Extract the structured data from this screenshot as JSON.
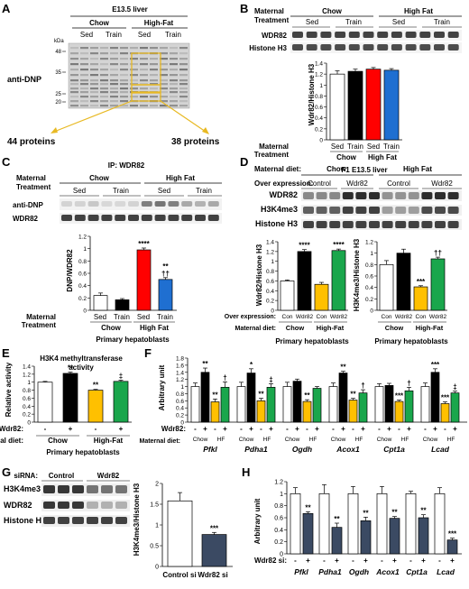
{
  "panels": {
    "A": {
      "letter": "A",
      "title": "E13.5 liver",
      "group_labels": [
        "Chow",
        "High-Fat"
      ],
      "sub_labels": [
        "Sed",
        "Train",
        "Sed",
        "Train"
      ],
      "kda_label": "kDa",
      "kda_marks": [
        "48",
        "35",
        "25",
        "20"
      ],
      "blot_label": "anti-DNP",
      "callouts": [
        "44 proteins",
        "38 proteins"
      ]
    },
    "B": {
      "letter": "B",
      "treatment_label": [
        "Maternal",
        "Treatment"
      ],
      "group_labels": [
        "Chow",
        "High Fat"
      ],
      "sub_labels": [
        "Sed",
        "Train",
        "Sed",
        "Train"
      ],
      "blots": [
        "WDR82",
        "Histone H3"
      ],
      "ylabel": "Wdr82/Histone H3",
      "yticks": [
        "0",
        "0.2",
        "0.4",
        "0.6",
        "0.8",
        "1",
        "1.2",
        "1.4"
      ],
      "xgroups": [
        "Chow",
        "High Fat"
      ],
      "xsub": [
        "Sed",
        "Train",
        "Sed",
        "Train"
      ],
      "footer": "F1 E13.5 liver"
    },
    "C": {
      "letter": "C",
      "ip_label": "IP: WDR82",
      "treatment_label": [
        "Maternal",
        "Treatment"
      ],
      "group_labels": [
        "Chow",
        "High Fat"
      ],
      "sub_labels": [
        "Sed",
        "Train",
        "Sed",
        "Train"
      ],
      "blots": [
        "anti-DNP",
        "WDR82"
      ],
      "ylabel": "DNP/WDR82",
      "yticks": [
        "0",
        "0.2",
        "0.4",
        "0.6",
        "0.8",
        "1",
        "1.2"
      ],
      "xgroups": [
        "Chow",
        "High Fat"
      ],
      "xsub": [
        "Sed",
        "Train",
        "Sed",
        "Train"
      ],
      "footer": "Primary hepatoblasts"
    },
    "D": {
      "letter": "D",
      "diet_label": "Maternal diet:",
      "overexp_label": "Over expression:",
      "group_labels": [
        "Chow",
        "High Fat"
      ],
      "sub_labels": [
        "Control",
        "Wdr82",
        "Control",
        "Wdr82"
      ],
      "blots": [
        "WDR82",
        "H3K4me3",
        "Histone H3"
      ],
      "ylabel_left": "Wdr82/Histone H3",
      "ylabel_right": "H3K4me3/Histone H3",
      "yticks_left": [
        "0",
        "0.2",
        "0.4",
        "0.6",
        "0.8",
        "1",
        "1.2",
        "1.4"
      ],
      "yticks_right": [
        "0",
        "0.2",
        "0.4",
        "0.6",
        "0.8",
        "1",
        "1.2"
      ],
      "xrow_label_1": "Over expression:",
      "xrow_label_2": "Maternal diet:",
      "xsub": [
        "Con",
        "Wdr82",
        "Con",
        "Wdr82"
      ],
      "xgroups": [
        "Chow",
        "High-Fat"
      ],
      "footer": "Primary hepatoblasts"
    },
    "E": {
      "letter": "E",
      "title_lines": [
        "H3K4 methyltransferase",
        "activity"
      ],
      "ylabel": "Relative activity",
      "yticks": [
        "0",
        "0.2",
        "0.4",
        "0.6",
        "0.8",
        "1",
        "1.2",
        "1.4"
      ],
      "wdr_label": "Wdr82:",
      "wdr_signs": [
        "-",
        "+",
        "-",
        "+"
      ],
      "diet_label": "Maternal diet:",
      "xgroups": [
        "Chow",
        "High-Fat"
      ],
      "footer": "Primary hepatoblasts"
    },
    "F": {
      "letter": "F",
      "ylabel": "Arbitrary unit",
      "yticks": [
        "0",
        "0.2",
        "0.4",
        "0.6",
        "0.8",
        "1",
        "1.2",
        "1.4",
        "1.6",
        "1.8"
      ],
      "wdr_label": "Wdr82:",
      "diet_label": "Maternal diet:",
      "signs": [
        "-",
        "+",
        "-",
        "+"
      ],
      "diets": [
        "Chow",
        "HF"
      ],
      "genes": [
        "Pfkl",
        "Pdha1",
        "Ogdh",
        "Acox1",
        "Cpt1a",
        "Lcad"
      ]
    },
    "G": {
      "letter": "G",
      "sirna_label": "siRNA:",
      "sirna_groups": [
        "Control",
        "Wdr82"
      ],
      "blots": [
        "H3K4me3",
        "WDR82",
        "Histone H3"
      ],
      "ylabel": "H3K4me3/Histone H3",
      "yticks": [
        "0",
        "0.5",
        "1",
        "1.5",
        "2"
      ],
      "categories": [
        "Control si",
        "Wdr82 si"
      ]
    },
    "H": {
      "letter": "H",
      "ylabel": "Arbitrary unit",
      "yticks": [
        "0",
        "0.2",
        "0.4",
        "0.6",
        "0.8",
        "1",
        "1.2"
      ],
      "si_label": "Wdr82 si:",
      "signs": [
        "-",
        "+"
      ],
      "genes": [
        "Pfkl",
        "Pdha1",
        "Ogdh",
        "Acox1",
        "Cpt1a",
        "Lcad"
      ]
    }
  },
  "colors": {
    "chow_sed": "#ffffff",
    "chow_train": "#000000",
    "hf_sed": "#ff0000",
    "hf_train": "#1f6fd1",
    "chow_wdr82": "#000000",
    "hf_control": "#ffc000",
    "hf_wdr82": "#1aa64c",
    "sirna": "#3b4a63",
    "callout": "#e8b923"
  },
  "chart_data": [
    {
      "id": "B",
      "type": "bar",
      "categories": [
        "Chow Sed",
        "Chow Train",
        "High Fat Sed",
        "High Fat Train"
      ],
      "values": [
        1.2,
        1.25,
        1.29,
        1.27
      ],
      "errors": [
        0.06,
        0.04,
        0.03,
        0.03
      ],
      "ylabel": "Wdr82/Histone H3",
      "ylim": [
        0,
        1.4
      ]
    },
    {
      "id": "C",
      "type": "bar",
      "categories": [
        "Chow Sed",
        "Chow Train",
        "High Fat Sed",
        "High Fat Train"
      ],
      "values": [
        0.24,
        0.17,
        0.98,
        0.5
      ],
      "errors": [
        0.04,
        0.02,
        0.03,
        0.03
      ],
      "annotations": [
        "",
        "",
        "****",
        "**\n††"
      ],
      "ylabel": "DNP/WDR82",
      "ylim": [
        0,
        1.2
      ]
    },
    {
      "id": "D-left",
      "type": "bar",
      "categories": [
        "Chow Con",
        "Chow Wdr82",
        "High-Fat Con",
        "High-Fat Wdr82"
      ],
      "values": [
        0.6,
        1.2,
        0.53,
        1.22
      ],
      "errors": [
        0.02,
        0.04,
        0.04,
        0.03
      ],
      "annotations": [
        "",
        "****",
        "",
        "****"
      ],
      "ylabel": "Wdr82/Histone H3",
      "ylim": [
        0,
        1.4
      ]
    },
    {
      "id": "D-right",
      "type": "bar",
      "categories": [
        "Chow Con",
        "Chow Wdr82",
        "High-Fat Con",
        "High-Fat Wdr82"
      ],
      "values": [
        0.8,
        1.0,
        0.41,
        0.9
      ],
      "errors": [
        0.07,
        0.07,
        0.02,
        0.03
      ],
      "annotations": [
        "",
        "",
        "***",
        "††"
      ],
      "ylabel": "H3K4me3/Histone H3",
      "ylim": [
        0,
        1.2
      ]
    },
    {
      "id": "E",
      "type": "bar",
      "categories": [
        "Chow -",
        "Chow +",
        "High-Fat -",
        "High-Fat +"
      ],
      "values": [
        1.0,
        1.22,
        0.8,
        1.02
      ],
      "errors": [
        0.02,
        0.03,
        0.02,
        0.03
      ],
      "annotations": [
        "",
        "**",
        "**",
        "‡"
      ],
      "ylabel": "Relative activity",
      "ylim": [
        0,
        1.4
      ]
    },
    {
      "id": "F",
      "type": "bar",
      "categories": [
        "Pfkl",
        "Pdha1",
        "Ogdh",
        "Acox1",
        "Cpt1a",
        "Lcad"
      ],
      "series": [
        {
          "name": "Chow -",
          "values": [
            1.0,
            1.0,
            1.0,
            1.0,
            1.0,
            1.0
          ],
          "errors": [
            0.1,
            0.12,
            0.12,
            0.1,
            0.08,
            0.1
          ]
        },
        {
          "name": "Chow +",
          "values": [
            1.4,
            1.38,
            1.15,
            1.38,
            1.03,
            1.4
          ],
          "errors": [
            0.12,
            0.12,
            0.06,
            0.05,
            0.06,
            0.1
          ]
        },
        {
          "name": "HF -",
          "values": [
            0.57,
            0.6,
            0.58,
            0.62,
            0.58,
            0.52
          ],
          "errors": [
            0.08,
            0.07,
            0.05,
            0.05,
            0.04,
            0.05
          ]
        },
        {
          "name": "HF +",
          "values": [
            0.98,
            0.98,
            0.95,
            0.82,
            0.88,
            0.82
          ],
          "errors": [
            0.15,
            0.1,
            0.05,
            0.09,
            0.1,
            0.05
          ]
        }
      ],
      "annotations": [
        [
          "",
          "**",
          "**",
          "†"
        ],
        [
          "",
          "*",
          "**",
          "‡"
        ],
        [
          "",
          "",
          "**",
          ""
        ],
        [
          "",
          "**",
          "**",
          "†"
        ],
        [
          "",
          "",
          "***",
          "†"
        ],
        [
          "",
          "***",
          "***",
          "‡"
        ]
      ],
      "ylabel": "Arbitrary unit",
      "ylim": [
        0,
        1.8
      ]
    },
    {
      "id": "G",
      "type": "bar",
      "categories": [
        "Control si",
        "Wdr82 si"
      ],
      "values": [
        1.58,
        0.77
      ],
      "errors": [
        0.2,
        0.05
      ],
      "annotations": [
        "",
        "***"
      ],
      "ylabel": "H3K4me3/Histone H3",
      "ylim": [
        0,
        2
      ]
    },
    {
      "id": "H",
      "type": "bar",
      "categories": [
        "Pfkl",
        "Pdha1",
        "Ogdh",
        "Acox1",
        "Cpt1a",
        "Lcad"
      ],
      "series": [
        {
          "name": "-",
          "values": [
            1.0,
            1.0,
            1.0,
            1.0,
            1.0,
            1.0
          ],
          "errors": [
            0.1,
            0.15,
            0.12,
            0.12,
            0.04,
            0.1
          ]
        },
        {
          "name": "+",
          "values": [
            0.67,
            0.44,
            0.55,
            0.59,
            0.6,
            0.23
          ],
          "errors": [
            0.03,
            0.07,
            0.06,
            0.03,
            0.05,
            0.03
          ]
        }
      ],
      "annotations": [
        [
          "",
          "**"
        ],
        [
          "",
          "**"
        ],
        [
          "",
          "**"
        ],
        [
          "",
          "**"
        ],
        [
          "",
          "**"
        ],
        [
          "",
          "***"
        ]
      ],
      "ylabel": "Arbitrary unit",
      "ylim": [
        0,
        1.2
      ]
    }
  ]
}
